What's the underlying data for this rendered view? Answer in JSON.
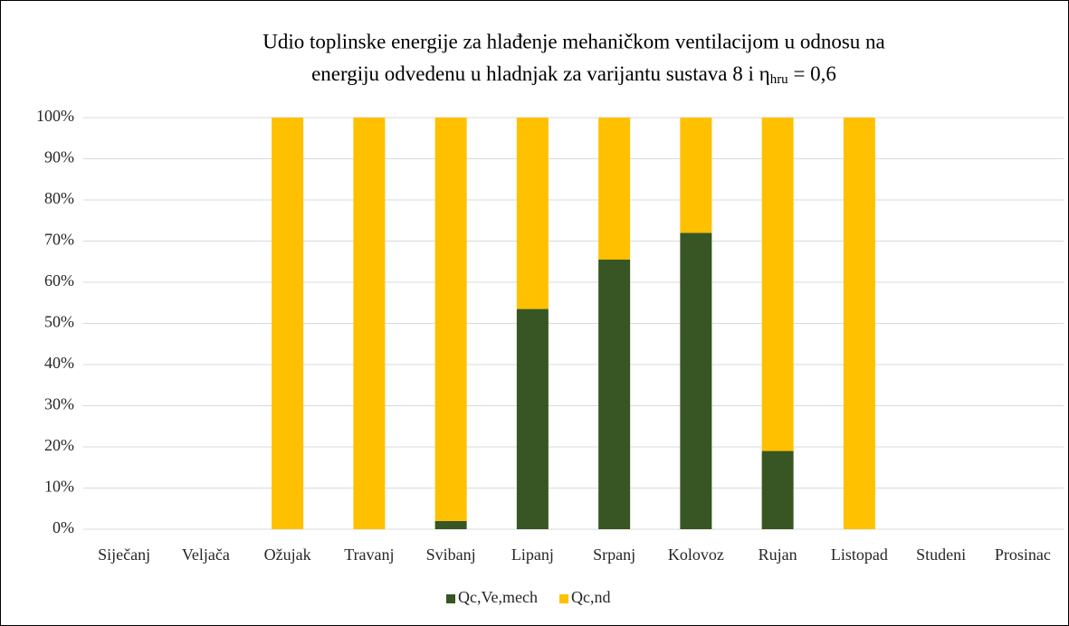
{
  "chart_data": {
    "type": "stacked_bar",
    "title": {
      "line1": "Udio toplinske energije za hlađenje mehaničkom ventilacijom u odnosu na",
      "line2": "energiju odvedenu u hladnjak za varijantu sustava 8 i η",
      "subscript": "hru",
      "suffix": " = 0,6"
    },
    "categories": [
      "Siječanj",
      "Veljača",
      "Ožujak",
      "Travanj",
      "Svibanj",
      "Lipanj",
      "Srpanj",
      "Kolovoz",
      "Rujan",
      "Listopad",
      "Studeni",
      "Prosinac"
    ],
    "series": [
      {
        "name": "Qc,Ve,mech",
        "color": "#375623",
        "values": [
          0,
          0,
          0,
          0,
          2,
          53.5,
          65.5,
          72,
          19,
          0,
          0,
          0
        ]
      },
      {
        "name": "Qc,nd",
        "color": "#ffc000",
        "values": [
          0,
          0,
          100,
          100,
          98,
          46.5,
          34.5,
          28,
          81,
          100,
          0,
          0
        ]
      }
    ],
    "ylim": [
      0,
      100
    ],
    "yticks": [
      {
        "value": 0,
        "label": "0%"
      },
      {
        "value": 10,
        "label": "10%"
      },
      {
        "value": 20,
        "label": "20%"
      },
      {
        "value": 30,
        "label": "30%"
      },
      {
        "value": 40,
        "label": "40%"
      },
      {
        "value": 50,
        "label": "50%"
      },
      {
        "value": 60,
        "label": "60%"
      },
      {
        "value": 70,
        "label": "70%"
      },
      {
        "value": 80,
        "label": "80%"
      },
      {
        "value": 90,
        "label": "90%"
      },
      {
        "value": 100,
        "label": "100%"
      }
    ],
    "grid": true,
    "legend": "bottom"
  }
}
